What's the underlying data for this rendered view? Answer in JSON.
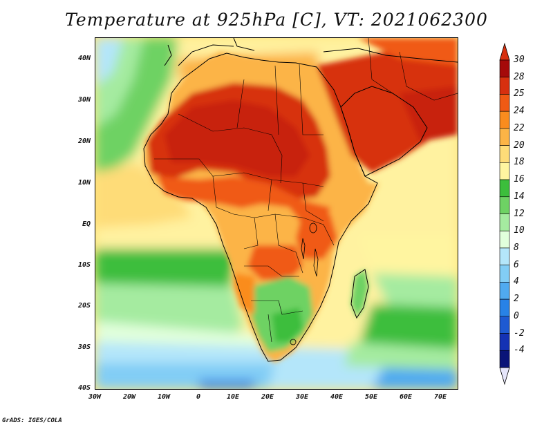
{
  "title": "Temperature at 925hPa [C], VT: 2021062300",
  "credit": "GrADS: IGES/COLA",
  "map": {
    "lat_labels": [
      "40N",
      "30N",
      "20N",
      "10N",
      "EQ",
      "10S",
      "20S",
      "30S",
      "40S"
    ],
    "lon_labels": [
      "30W",
      "20W",
      "10W",
      "0",
      "10E",
      "20E",
      "30E",
      "40E",
      "50E",
      "60E",
      "70E"
    ]
  },
  "colorbar": {
    "levels": [
      {
        "label": "30",
        "color": "#a50a0a"
      },
      {
        "label": "28",
        "color": "#d7300f"
      },
      {
        "label": "25",
        "color": "#f05a14"
      },
      {
        "label": "24",
        "color": "#fa8c1e"
      },
      {
        "label": "22",
        "color": "#fcb446"
      },
      {
        "label": "20",
        "color": "#fedc78"
      },
      {
        "label": "18",
        "color": "#fff5a0"
      },
      {
        "label": "16",
        "color": "#3cbe3c"
      },
      {
        "label": "14",
        "color": "#6ed264"
      },
      {
        "label": "12",
        "color": "#a5eba0"
      },
      {
        "label": "10",
        "color": "#e1ffdc"
      },
      {
        "label": "8",
        "color": "#b4e6fa"
      },
      {
        "label": "6",
        "color": "#82cdf5"
      },
      {
        "label": "4",
        "color": "#50aaf0"
      },
      {
        "label": "2",
        "color": "#2882e6"
      },
      {
        "label": "0",
        "color": "#1e5ad2"
      },
      {
        "label": "-2",
        "color": "#1432b4"
      },
      {
        "label": "-4",
        "color": "#0a1478"
      }
    ],
    "top_arrow_color": "#d7300f",
    "bottom_arrow_color": "#e6e6fa"
  }
}
